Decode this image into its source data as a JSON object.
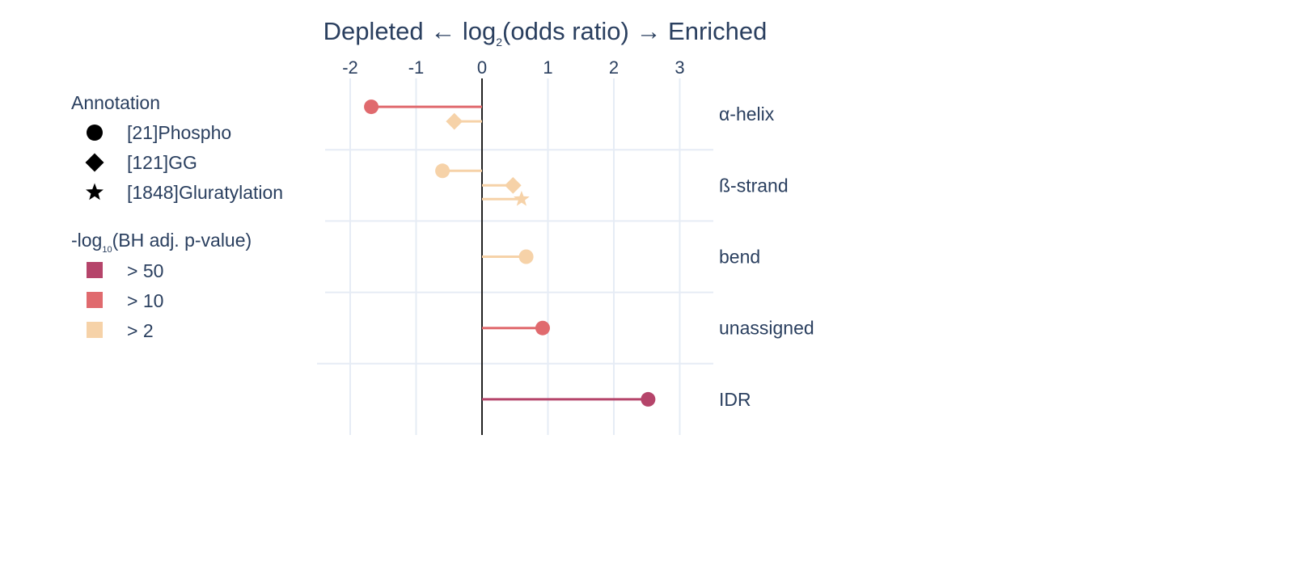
{
  "chart_data": {
    "type": "lollipop",
    "title": {
      "prefix": "Depleted ← log",
      "subscript": "2",
      "suffix": "(odds ratio) → Enriched"
    },
    "xlim": [
      -2.5,
      3.5
    ],
    "xticks": [
      -2,
      -1,
      0,
      1,
      2,
      3
    ],
    "xtick_labels": [
      "-2",
      "-1",
      "0",
      "1",
      "2",
      "3"
    ],
    "categories": [
      "α-helix",
      "ß-strand",
      "bend",
      "unassigned",
      "IDR"
    ],
    "grid": true,
    "zero_line": true,
    "legend_position": "left",
    "points": [
      {
        "category": "α-helix",
        "annotation": "[21]Phospho",
        "x": -1.68,
        "significance": "> 10"
      },
      {
        "category": "α-helix",
        "annotation": "[121]GG",
        "x": -0.42,
        "significance": "> 2"
      },
      {
        "category": "ß-strand",
        "annotation": "[21]Phospho",
        "x": -0.6,
        "significance": "> 2"
      },
      {
        "category": "ß-strand",
        "annotation": "[121]GG",
        "x": 0.47,
        "significance": "> 2"
      },
      {
        "category": "ß-strand",
        "annotation": "[1848]Gluratylation",
        "x": 0.6,
        "significance": "> 2"
      },
      {
        "category": "bend",
        "annotation": "[21]Phospho",
        "x": 0.67,
        "significance": "> 2"
      },
      {
        "category": "unassigned",
        "annotation": "[21]Phospho",
        "x": 0.92,
        "significance": "> 10"
      },
      {
        "category": "IDR",
        "annotation": "[21]Phospho",
        "x": 2.52,
        "significance": "> 50"
      }
    ],
    "annotation_legend": {
      "title": "Annotation",
      "items": [
        {
          "label": "[21]Phospho",
          "symbol": "circle"
        },
        {
          "label": "[121]GG",
          "symbol": "diamond"
        },
        {
          "label": "[1848]Gluratylation",
          "symbol": "star"
        }
      ]
    },
    "significance_legend": {
      "title_prefix": "-log",
      "title_subscript": "10",
      "title_suffix": "(BH adj. p-value)",
      "items": [
        {
          "label": "> 50",
          "color": "#b5446a"
        },
        {
          "label": "> 10",
          "color": "#e06a6e"
        },
        {
          "label": "> 2",
          "color": "#f6d2a8"
        }
      ]
    }
  }
}
